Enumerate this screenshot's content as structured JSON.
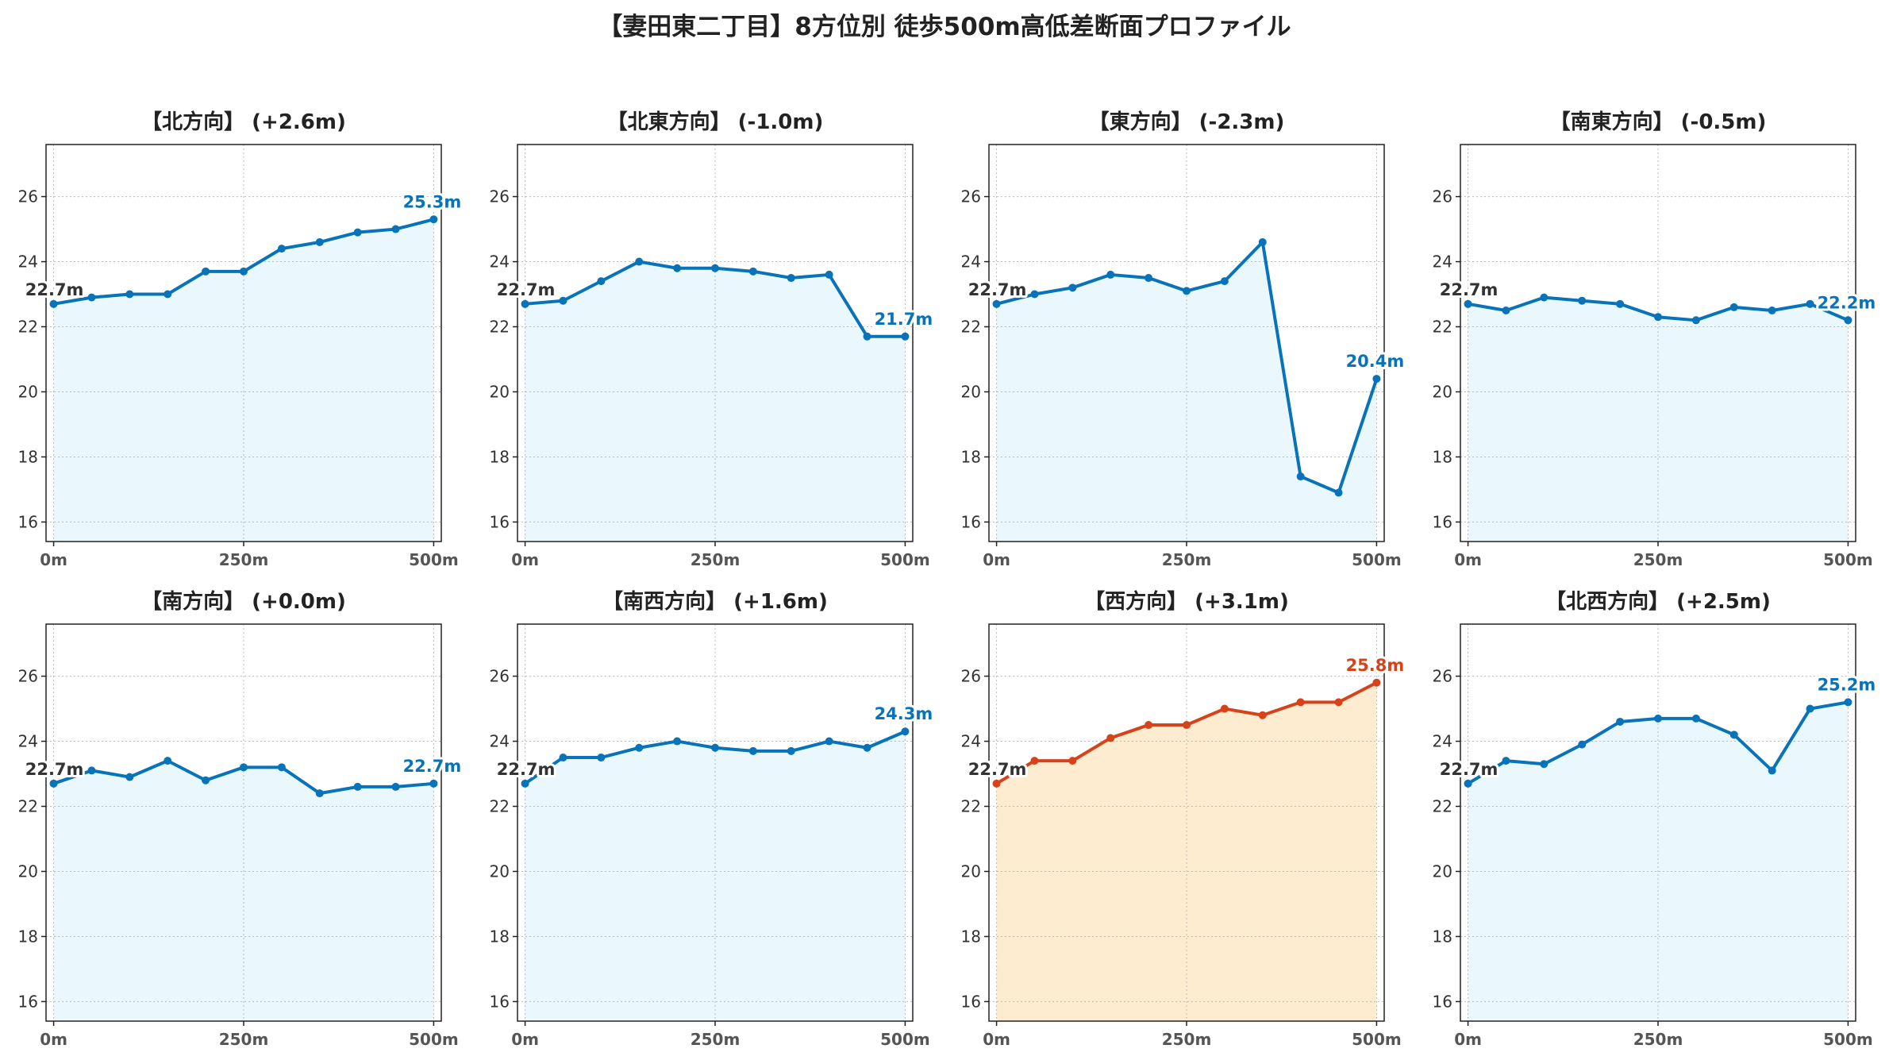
{
  "chart_data": {
    "type": "line",
    "title": "【妻田東二丁目】8方位別 徒歩500m高低差断面プロファイル",
    "x": [
      0,
      50,
      100,
      150,
      200,
      250,
      300,
      350,
      400,
      450,
      500
    ],
    "xticks": [
      {
        "value": 0,
        "label": "0m"
      },
      {
        "value": 250,
        "label": "250m"
      },
      {
        "value": 500,
        "label": "500m"
      }
    ],
    "yticks": [
      16,
      18,
      20,
      22,
      24,
      26
    ],
    "xlim": [
      -10,
      510
    ],
    "ylim": [
      15.4,
      27.6
    ],
    "grid": true,
    "colors": {
      "normal": "#0873b9",
      "normal_fill": "#eaf7fc",
      "highlight": "#d6431a",
      "highlight_fill": "#fdecd0",
      "start_label": "#333333"
    },
    "panels": [
      {
        "title": "【北方向】 (+2.6m)",
        "values": [
          22.7,
          22.9,
          23.0,
          23.0,
          23.7,
          23.7,
          24.4,
          24.6,
          24.9,
          25.0,
          25.3
        ],
        "start_label": "22.7m",
        "end_label": "25.3m",
        "highlight": false
      },
      {
        "title": "【北東方向】 (-1.0m)",
        "values": [
          22.7,
          22.8,
          23.4,
          24.0,
          23.8,
          23.8,
          23.7,
          23.5,
          23.6,
          21.7,
          21.7
        ],
        "start_label": "22.7m",
        "end_label": "21.7m",
        "highlight": false
      },
      {
        "title": "【東方向】 (-2.3m)",
        "values": [
          22.7,
          23.0,
          23.2,
          23.6,
          23.5,
          23.1,
          23.4,
          24.6,
          17.4,
          16.9,
          20.4
        ],
        "start_label": "22.7m",
        "end_label": "20.4m",
        "highlight": false
      },
      {
        "title": "【南東方向】 (-0.5m)",
        "values": [
          22.7,
          22.5,
          22.9,
          22.8,
          22.7,
          22.3,
          22.2,
          22.6,
          22.5,
          22.7,
          22.2
        ],
        "start_label": "22.7m",
        "end_label": "22.2m",
        "highlight": false
      },
      {
        "title": "【南方向】 (+0.0m)",
        "values": [
          22.7,
          23.1,
          22.9,
          23.4,
          22.8,
          23.2,
          23.2,
          22.4,
          22.6,
          22.6,
          22.7
        ],
        "start_label": "22.7m",
        "end_label": "22.7m",
        "highlight": false
      },
      {
        "title": "【南西方向】 (+1.6m)",
        "values": [
          22.7,
          23.5,
          23.5,
          23.8,
          24.0,
          23.8,
          23.7,
          23.7,
          24.0,
          23.8,
          24.3
        ],
        "start_label": "22.7m",
        "end_label": "24.3m",
        "highlight": false
      },
      {
        "title": "【西方向】 (+3.1m)",
        "values": [
          22.7,
          23.4,
          23.4,
          24.1,
          24.5,
          24.5,
          25.0,
          24.8,
          25.2,
          25.2,
          25.8
        ],
        "start_label": "22.7m",
        "end_label": "25.8m",
        "highlight": true
      },
      {
        "title": "【北西方向】 (+2.5m)",
        "values": [
          22.7,
          23.4,
          23.3,
          23.9,
          24.6,
          24.7,
          24.7,
          24.2,
          23.1,
          25.0,
          25.2
        ],
        "start_label": "22.7m",
        "end_label": "25.2m",
        "highlight": false
      }
    ]
  }
}
